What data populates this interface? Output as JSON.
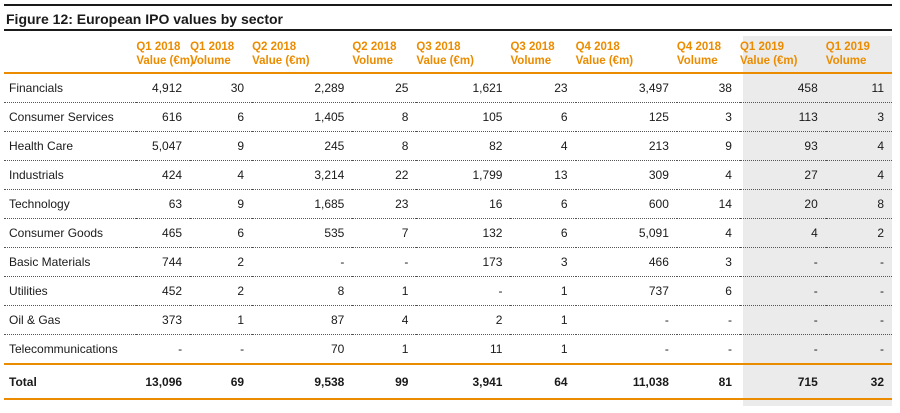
{
  "figure": {
    "title": "Figure 12: European IPO values by sector"
  },
  "table": {
    "columns": [
      {
        "line1": "",
        "line2": ""
      },
      {
        "line1": "Q1 2018",
        "line2": "Value (€m)"
      },
      {
        "line1": "Q1 2018",
        "line2": "Volume"
      },
      {
        "line1": "Q2 2018",
        "line2": "Value (€m)"
      },
      {
        "line1": "Q2 2018",
        "line2": "Volume"
      },
      {
        "line1": "Q3 2018",
        "line2": "Value (€m)"
      },
      {
        "line1": "Q3 2018",
        "line2": "Volume"
      },
      {
        "line1": "Q4 2018",
        "line2": "Value (€m)"
      },
      {
        "line1": "Q4 2018",
        "line2": "Volume"
      },
      {
        "line1": "Q1 2019",
        "line2": "Value (€m)"
      },
      {
        "line1": "Q1 2019",
        "line2": "Volume"
      }
    ],
    "rows": [
      {
        "sector": "Financials",
        "values": [
          "4,912",
          "30",
          "2,289",
          "25",
          "1,621",
          "23",
          "3,497",
          "38",
          "458",
          "11"
        ]
      },
      {
        "sector": "Consumer Services",
        "values": [
          "616",
          "6",
          "1,405",
          "8",
          "105",
          "6",
          "125",
          "3",
          "113",
          "3"
        ]
      },
      {
        "sector": "Health Care",
        "values": [
          "5,047",
          "9",
          "245",
          "8",
          "82",
          "4",
          "213",
          "9",
          "93",
          "4"
        ]
      },
      {
        "sector": "Industrials",
        "values": [
          "424",
          "4",
          "3,214",
          "22",
          "1,799",
          "13",
          "309",
          "4",
          "27",
          "4"
        ]
      },
      {
        "sector": "Technology",
        "values": [
          "63",
          "9",
          "1,685",
          "23",
          "16",
          "6",
          "600",
          "14",
          "20",
          "8"
        ]
      },
      {
        "sector": "Consumer Goods",
        "values": [
          "465",
          "6",
          "535",
          "7",
          "132",
          "6",
          "5,091",
          "4",
          "4",
          "2"
        ]
      },
      {
        "sector": "Basic Materials",
        "values": [
          "744",
          "2",
          "-",
          "-",
          "173",
          "3",
          "466",
          "3",
          "-",
          "-"
        ]
      },
      {
        "sector": "Utilities",
        "values": [
          "452",
          "2",
          "8",
          "1",
          "-",
          "1",
          "737",
          "6",
          "-",
          "-"
        ]
      },
      {
        "sector": "Oil & Gas",
        "values": [
          "373",
          "1",
          "87",
          "4",
          "2",
          "1",
          "-",
          "-",
          "-",
          "-"
        ]
      },
      {
        "sector": "Telecommunications",
        "values": [
          "-",
          "-",
          "70",
          "1",
          "11",
          "1",
          "-",
          "-",
          "-",
          "-"
        ]
      }
    ],
    "total": {
      "sector": "Total",
      "values": [
        "13,096",
        "69",
        "9,538",
        "99",
        "3,941",
        "64",
        "11,038",
        "81",
        "715",
        "32"
      ]
    }
  },
  "colors": {
    "accent": "#eb8c00",
    "highlight_column_bg": "#ebebeb",
    "text": "#1a1a1a"
  }
}
